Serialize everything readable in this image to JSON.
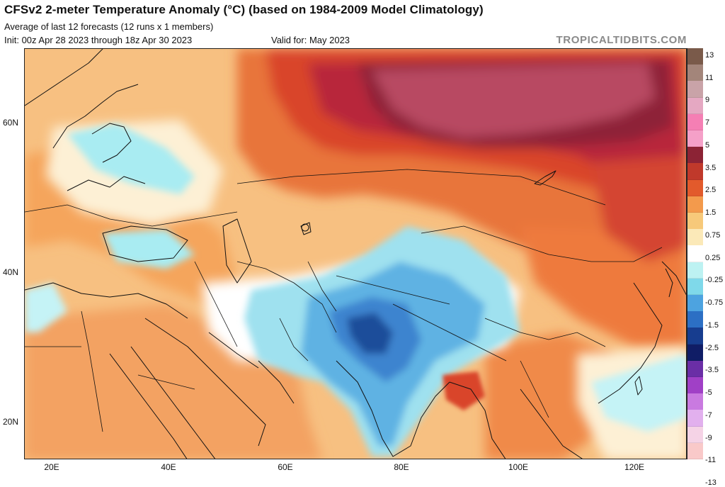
{
  "header": {
    "title": "CFSv2 2-meter Temperature Anomaly (°C) (based on 1984-2009 Model Climatology)",
    "subtitle": "Average of last 12 forecasts (12 runs x 1 members)",
    "init": "Init: 00z Apr 28 2023 through 18z Apr 30 2023",
    "valid": "Valid for: May 2023",
    "watermark": "TROPICALTIDBITS.COM"
  },
  "map": {
    "lat_labels": [
      "60N",
      "40N",
      "20N"
    ],
    "lon_labels": [
      "20E",
      "40E",
      "60E",
      "80E",
      "100E",
      "120E"
    ]
  },
  "colorbar": {
    "labels": [
      "13",
      "11",
      "9",
      "7",
      "5",
      "3.5",
      "2.5",
      "1.5",
      "0.75",
      "0.25",
      "-0.25",
      "-0.75",
      "-1.5",
      "-2.5",
      "-3.5",
      "-5",
      "-7",
      "-9",
      "-11",
      "-13"
    ],
    "colors": [
      "#7a5a4a",
      "#a3857a",
      "#c9a3a8",
      "#e5a8c2",
      "#f57fb4",
      "#f5a0c8",
      "#8c2335",
      "#c0392b",
      "#e25a2c",
      "#f39a4c",
      "#f7c97a",
      "#fbe9b8",
      "#ffffff",
      "#bdf2f2",
      "#7fd9ea",
      "#4da3e0",
      "#2c6fc4",
      "#173d8f",
      "#101d66",
      "#6a2ea6",
      "#a040c6",
      "#c97ae0",
      "#e2b0ee",
      "#f5d3e6",
      "#f9c9c9"
    ]
  }
}
